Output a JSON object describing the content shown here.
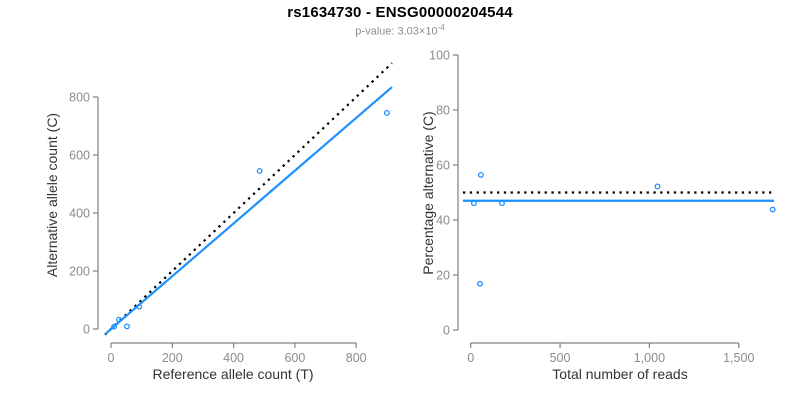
{
  "figure": {
    "title": "rs1634730 - ENSG00000204544",
    "subtitle_prefix": "p-value: 3.03×10",
    "subtitle_exponent": "-4"
  },
  "colors": {
    "accent_blue": "#1E90FF",
    "dotted_line": "#000000",
    "axis_line": "#808080",
    "tick_label": "#8c8c8c",
    "axis_title": "#333333",
    "background": "#ffffff"
  },
  "chart_data": [
    {
      "type": "scatter",
      "panel": "left",
      "xlabel": "Reference allele count (T)",
      "ylabel": "Alternative allele count (C)",
      "xlim": [
        0,
        920
      ],
      "ylim": [
        0,
        945
      ],
      "grid": false,
      "legend": null,
      "xticks": [
        0,
        200,
        400,
        600,
        800
      ],
      "xtick_labels": [
        "0",
        "200",
        "400",
        "600",
        "800"
      ],
      "yticks": [
        0,
        200,
        400,
        600,
        800
      ],
      "ytick_labels": [
        "0",
        "200",
        "400",
        "600",
        "800"
      ],
      "points": [
        [
          10,
          8
        ],
        [
          26,
          32
        ],
        [
          52,
          9
        ],
        [
          92,
          77
        ],
        [
          485,
          545
        ],
        [
          900,
          745
        ]
      ],
      "lines": [
        {
          "name": "expected-identity-line",
          "style": "dotted",
          "color": "#000000",
          "slope": 1.0,
          "intercept": 0
        },
        {
          "name": "fitted-line",
          "style": "solid",
          "color": "#1E90FF",
          "slope": 0.91,
          "intercept": 0
        }
      ]
    },
    {
      "type": "scatter",
      "panel": "right",
      "xlabel": "Total number of reads",
      "ylabel": "Percentage alternative (C)",
      "xlim": [
        0,
        1740
      ],
      "ylim": [
        0,
        100
      ],
      "grid": false,
      "legend": null,
      "xticks": [
        0,
        500,
        1000,
        1500
      ],
      "xtick_labels": [
        "0",
        "500",
        "1,000",
        "1,500"
      ],
      "yticks": [
        0,
        20,
        40,
        60,
        80,
        100
      ],
      "ytick_labels": [
        "0",
        "20",
        "40",
        "60",
        "80",
        "100"
      ],
      "points": [
        [
          18,
          46.1
        ],
        [
          52,
          16.8
        ],
        [
          57,
          56.4
        ],
        [
          175,
          46.1
        ],
        [
          1045,
          52.2
        ],
        [
          1690,
          43.8
        ]
      ],
      "lines": [
        {
          "name": "expected-50pct-line",
          "style": "dotted",
          "color": "#000000",
          "hline": 50
        },
        {
          "name": "fitted-mean-line",
          "style": "solid",
          "color": "#1E90FF",
          "hline": 47.0
        }
      ]
    }
  ]
}
